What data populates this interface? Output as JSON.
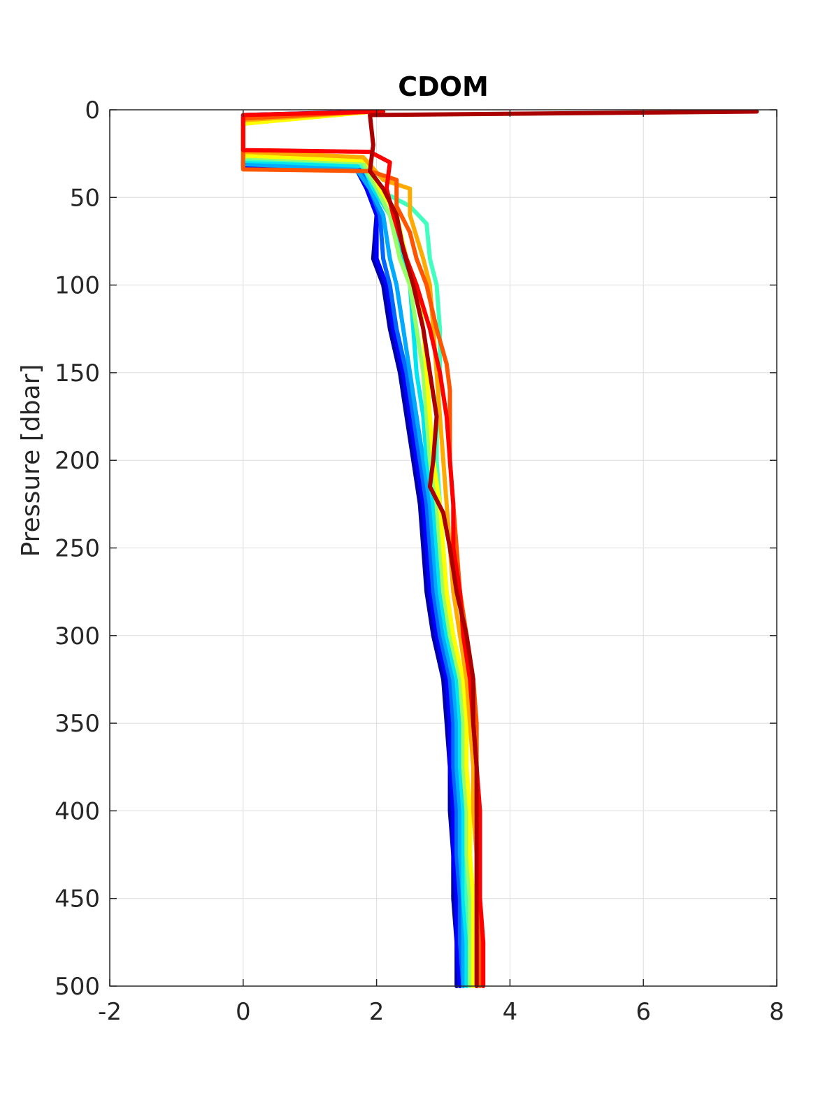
{
  "chart_data": {
    "type": "line",
    "title": "CDOM",
    "xlabel": "",
    "ylabel": "Pressure [dbar]",
    "xlim": [
      -2,
      8
    ],
    "ylim": [
      0,
      500
    ],
    "y_reversed": true,
    "grid": true,
    "legend": "none",
    "x_ticks": [
      -2,
      0,
      2,
      4,
      6,
      8
    ],
    "y_ticks": [
      0,
      50,
      100,
      150,
      200,
      250,
      300,
      350,
      400,
      450,
      500
    ],
    "colormap": "jet",
    "series": [
      {
        "color": "#0000aa",
        "points": [
          [
            1.9,
            1
          ],
          [
            0.0,
            3
          ],
          [
            0.0,
            33
          ],
          [
            1.8,
            35
          ],
          [
            1.9,
            45
          ],
          [
            2.0,
            60
          ],
          [
            1.95,
            85
          ],
          [
            2.1,
            100
          ],
          [
            2.2,
            125
          ],
          [
            2.35,
            150
          ],
          [
            2.45,
            175
          ],
          [
            2.55,
            200
          ],
          [
            2.65,
            225
          ],
          [
            2.7,
            250
          ],
          [
            2.75,
            275
          ],
          [
            2.85,
            300
          ],
          [
            3.0,
            325
          ],
          [
            3.05,
            350
          ],
          [
            3.1,
            375
          ],
          [
            3.1,
            400
          ],
          [
            3.15,
            425
          ],
          [
            3.15,
            450
          ],
          [
            3.2,
            475
          ],
          [
            3.2,
            500
          ]
        ]
      },
      {
        "color": "#0000ff",
        "points": [
          [
            1.7,
            1
          ],
          [
            0.0,
            4
          ],
          [
            0.0,
            32
          ],
          [
            1.7,
            34
          ],
          [
            1.85,
            45
          ],
          [
            2.0,
            60
          ],
          [
            2.0,
            85
          ],
          [
            2.15,
            100
          ],
          [
            2.25,
            125
          ],
          [
            2.4,
            150
          ],
          [
            2.5,
            175
          ],
          [
            2.6,
            200
          ],
          [
            2.7,
            225
          ],
          [
            2.75,
            250
          ],
          [
            2.8,
            275
          ],
          [
            2.9,
            300
          ],
          [
            3.05,
            325
          ],
          [
            3.1,
            350
          ],
          [
            3.1,
            375
          ],
          [
            3.15,
            400
          ],
          [
            3.15,
            425
          ],
          [
            3.2,
            450
          ],
          [
            3.2,
            475
          ],
          [
            3.25,
            500
          ]
        ]
      },
      {
        "color": "#0066ff",
        "points": [
          [
            1.8,
            1
          ],
          [
            0.0,
            5
          ],
          [
            0.0,
            30
          ],
          [
            1.75,
            33
          ],
          [
            1.9,
            45
          ],
          [
            2.05,
            60
          ],
          [
            2.1,
            85
          ],
          [
            2.2,
            100
          ],
          [
            2.3,
            125
          ],
          [
            2.45,
            150
          ],
          [
            2.55,
            175
          ],
          [
            2.65,
            200
          ],
          [
            2.75,
            225
          ],
          [
            2.8,
            250
          ],
          [
            2.85,
            275
          ],
          [
            2.95,
            300
          ],
          [
            3.1,
            325
          ],
          [
            3.15,
            350
          ],
          [
            3.15,
            375
          ],
          [
            3.2,
            400
          ],
          [
            3.2,
            425
          ],
          [
            3.25,
            450
          ],
          [
            3.25,
            475
          ],
          [
            3.3,
            500
          ]
        ]
      },
      {
        "color": "#00aaff",
        "points": [
          [
            1.75,
            1
          ],
          [
            0.0,
            6
          ],
          [
            0.0,
            31
          ],
          [
            1.7,
            34
          ],
          [
            1.9,
            45
          ],
          [
            2.1,
            60
          ],
          [
            2.2,
            85
          ],
          [
            2.3,
            100
          ],
          [
            2.4,
            125
          ],
          [
            2.5,
            150
          ],
          [
            2.6,
            175
          ],
          [
            2.7,
            200
          ],
          [
            2.8,
            225
          ],
          [
            2.85,
            250
          ],
          [
            2.9,
            275
          ],
          [
            3.0,
            300
          ],
          [
            3.15,
            325
          ],
          [
            3.2,
            350
          ],
          [
            3.2,
            375
          ],
          [
            3.25,
            400
          ],
          [
            3.25,
            425
          ],
          [
            3.3,
            450
          ],
          [
            3.3,
            475
          ],
          [
            3.3,
            500
          ]
        ]
      },
      {
        "color": "#00e5ee",
        "points": [
          [
            1.85,
            1
          ],
          [
            0.0,
            5
          ],
          [
            0.0,
            29
          ],
          [
            1.8,
            32
          ],
          [
            1.95,
            45
          ],
          [
            2.2,
            60
          ],
          [
            2.4,
            85
          ],
          [
            2.5,
            100
          ],
          [
            2.55,
            125
          ],
          [
            2.6,
            150
          ],
          [
            2.7,
            175
          ],
          [
            2.75,
            200
          ],
          [
            2.85,
            225
          ],
          [
            2.9,
            250
          ],
          [
            2.95,
            275
          ],
          [
            3.05,
            300
          ],
          [
            3.2,
            325
          ],
          [
            3.25,
            350
          ],
          [
            3.25,
            375
          ],
          [
            3.3,
            400
          ],
          [
            3.3,
            425
          ],
          [
            3.3,
            450
          ],
          [
            3.35,
            475
          ],
          [
            3.35,
            500
          ]
        ]
      },
      {
        "color": "#40ffbf",
        "points": [
          [
            1.8,
            1
          ],
          [
            0.0,
            4
          ],
          [
            0.0,
            28
          ],
          [
            1.75,
            30
          ],
          [
            2.0,
            45
          ],
          [
            2.5,
            55
          ],
          [
            2.75,
            65
          ],
          [
            2.8,
            85
          ],
          [
            2.9,
            100
          ],
          [
            2.95,
            125
          ],
          [
            2.95,
            150
          ],
          [
            2.9,
            175
          ],
          [
            2.9,
            200
          ],
          [
            2.95,
            225
          ],
          [
            3.0,
            250
          ],
          [
            3.05,
            275
          ],
          [
            3.15,
            300
          ],
          [
            3.25,
            325
          ],
          [
            3.3,
            350
          ],
          [
            3.3,
            375
          ],
          [
            3.35,
            400
          ],
          [
            3.35,
            425
          ],
          [
            3.35,
            450
          ],
          [
            3.4,
            475
          ],
          [
            3.4,
            500
          ]
        ]
      },
      {
        "color": "#99ff66",
        "points": [
          [
            1.9,
            1
          ],
          [
            0.0,
            7
          ],
          [
            0.0,
            27
          ],
          [
            1.8,
            30
          ],
          [
            2.0,
            45
          ],
          [
            2.2,
            60
          ],
          [
            2.35,
            85
          ],
          [
            2.5,
            100
          ],
          [
            2.6,
            125
          ],
          [
            2.7,
            150
          ],
          [
            2.75,
            175
          ],
          [
            2.8,
            200
          ],
          [
            2.9,
            225
          ],
          [
            2.95,
            250
          ],
          [
            3.0,
            275
          ],
          [
            3.1,
            300
          ],
          [
            3.25,
            325
          ],
          [
            3.3,
            350
          ],
          [
            3.3,
            375
          ],
          [
            3.35,
            400
          ],
          [
            3.35,
            425
          ],
          [
            3.4,
            450
          ],
          [
            3.4,
            475
          ],
          [
            3.4,
            500
          ]
        ]
      },
      {
        "color": "#ffff00",
        "points": [
          [
            1.95,
            1
          ],
          [
            0.0,
            8
          ],
          [
            0.0,
            26
          ],
          [
            1.85,
            29
          ],
          [
            2.05,
            45
          ],
          [
            2.3,
            60
          ],
          [
            2.45,
            85
          ],
          [
            2.6,
            100
          ],
          [
            2.7,
            125
          ],
          [
            2.75,
            150
          ],
          [
            2.8,
            175
          ],
          [
            2.85,
            200
          ],
          [
            2.95,
            225
          ],
          [
            3.0,
            250
          ],
          [
            3.05,
            275
          ],
          [
            3.15,
            300
          ],
          [
            3.3,
            325
          ],
          [
            3.35,
            350
          ],
          [
            3.35,
            375
          ],
          [
            3.4,
            400
          ],
          [
            3.4,
            425
          ],
          [
            3.45,
            450
          ],
          [
            3.45,
            475
          ],
          [
            3.45,
            500
          ]
        ]
      },
      {
        "color": "#ffaa00",
        "points": [
          [
            1.9,
            1
          ],
          [
            0.0,
            6
          ],
          [
            0.0,
            24
          ],
          [
            1.8,
            27
          ],
          [
            2.1,
            40
          ],
          [
            2.5,
            45
          ],
          [
            2.5,
            60
          ],
          [
            2.7,
            85
          ],
          [
            2.8,
            100
          ],
          [
            2.85,
            125
          ],
          [
            2.9,
            150
          ],
          [
            2.95,
            175
          ],
          [
            3.0,
            200
          ],
          [
            3.05,
            225
          ],
          [
            3.1,
            250
          ],
          [
            3.15,
            275
          ],
          [
            3.25,
            300
          ],
          [
            3.35,
            325
          ],
          [
            3.4,
            350
          ],
          [
            3.45,
            375
          ],
          [
            3.45,
            400
          ],
          [
            3.5,
            425
          ],
          [
            3.5,
            450
          ],
          [
            3.5,
            475
          ],
          [
            3.5,
            500
          ]
        ]
      },
      {
        "color": "#ff5500",
        "points": [
          [
            1.85,
            1
          ],
          [
            0.0,
            5
          ],
          [
            0.0,
            34
          ],
          [
            1.9,
            35
          ],
          [
            2.3,
            40
          ],
          [
            2.3,
            55
          ],
          [
            2.5,
            70
          ],
          [
            2.6,
            85
          ],
          [
            2.75,
            100
          ],
          [
            2.9,
            125
          ],
          [
            3.05,
            145
          ],
          [
            3.1,
            160
          ],
          [
            3.1,
            175
          ],
          [
            3.1,
            200
          ],
          [
            3.15,
            225
          ],
          [
            3.2,
            250
          ],
          [
            3.25,
            275
          ],
          [
            3.35,
            300
          ],
          [
            3.45,
            325
          ],
          [
            3.5,
            350
          ],
          [
            3.5,
            375
          ],
          [
            3.5,
            400
          ],
          [
            3.55,
            425
          ],
          [
            3.55,
            450
          ],
          [
            3.55,
            475
          ],
          [
            3.55,
            500
          ]
        ]
      },
      {
        "color": "#ff0000",
        "points": [
          [
            2.1,
            1
          ],
          [
            0.0,
            3
          ],
          [
            0.0,
            23
          ],
          [
            1.9,
            24
          ],
          [
            2.2,
            30
          ],
          [
            2.15,
            45
          ],
          [
            2.25,
            60
          ],
          [
            2.45,
            85
          ],
          [
            2.6,
            100
          ],
          [
            2.8,
            125
          ],
          [
            2.95,
            150
          ],
          [
            3.05,
            175
          ],
          [
            3.1,
            200
          ],
          [
            3.15,
            225
          ],
          [
            3.15,
            250
          ],
          [
            3.25,
            275
          ],
          [
            3.3,
            300
          ],
          [
            3.4,
            325
          ],
          [
            3.45,
            350
          ],
          [
            3.5,
            375
          ],
          [
            3.55,
            400
          ],
          [
            3.55,
            425
          ],
          [
            3.55,
            450
          ],
          [
            3.6,
            475
          ],
          [
            3.6,
            500
          ]
        ]
      },
      {
        "color": "#aa0000",
        "points": [
          [
            7.7,
            1
          ],
          [
            1.9,
            3
          ],
          [
            1.95,
            20
          ],
          [
            1.9,
            35
          ],
          [
            2.1,
            45
          ],
          [
            2.3,
            60
          ],
          [
            2.4,
            80
          ],
          [
            2.55,
            100
          ],
          [
            2.7,
            125
          ],
          [
            2.8,
            150
          ],
          [
            2.9,
            175
          ],
          [
            2.85,
            200
          ],
          [
            2.8,
            215
          ],
          [
            3.0,
            230
          ],
          [
            3.1,
            250
          ],
          [
            3.2,
            275
          ],
          [
            3.35,
            300
          ],
          [
            3.45,
            325
          ],
          [
            3.45,
            350
          ],
          [
            3.5,
            375
          ],
          [
            3.5,
            400
          ],
          [
            3.5,
            425
          ],
          [
            3.5,
            450
          ],
          [
            3.5,
            475
          ],
          [
            3.5,
            500
          ]
        ]
      }
    ]
  }
}
